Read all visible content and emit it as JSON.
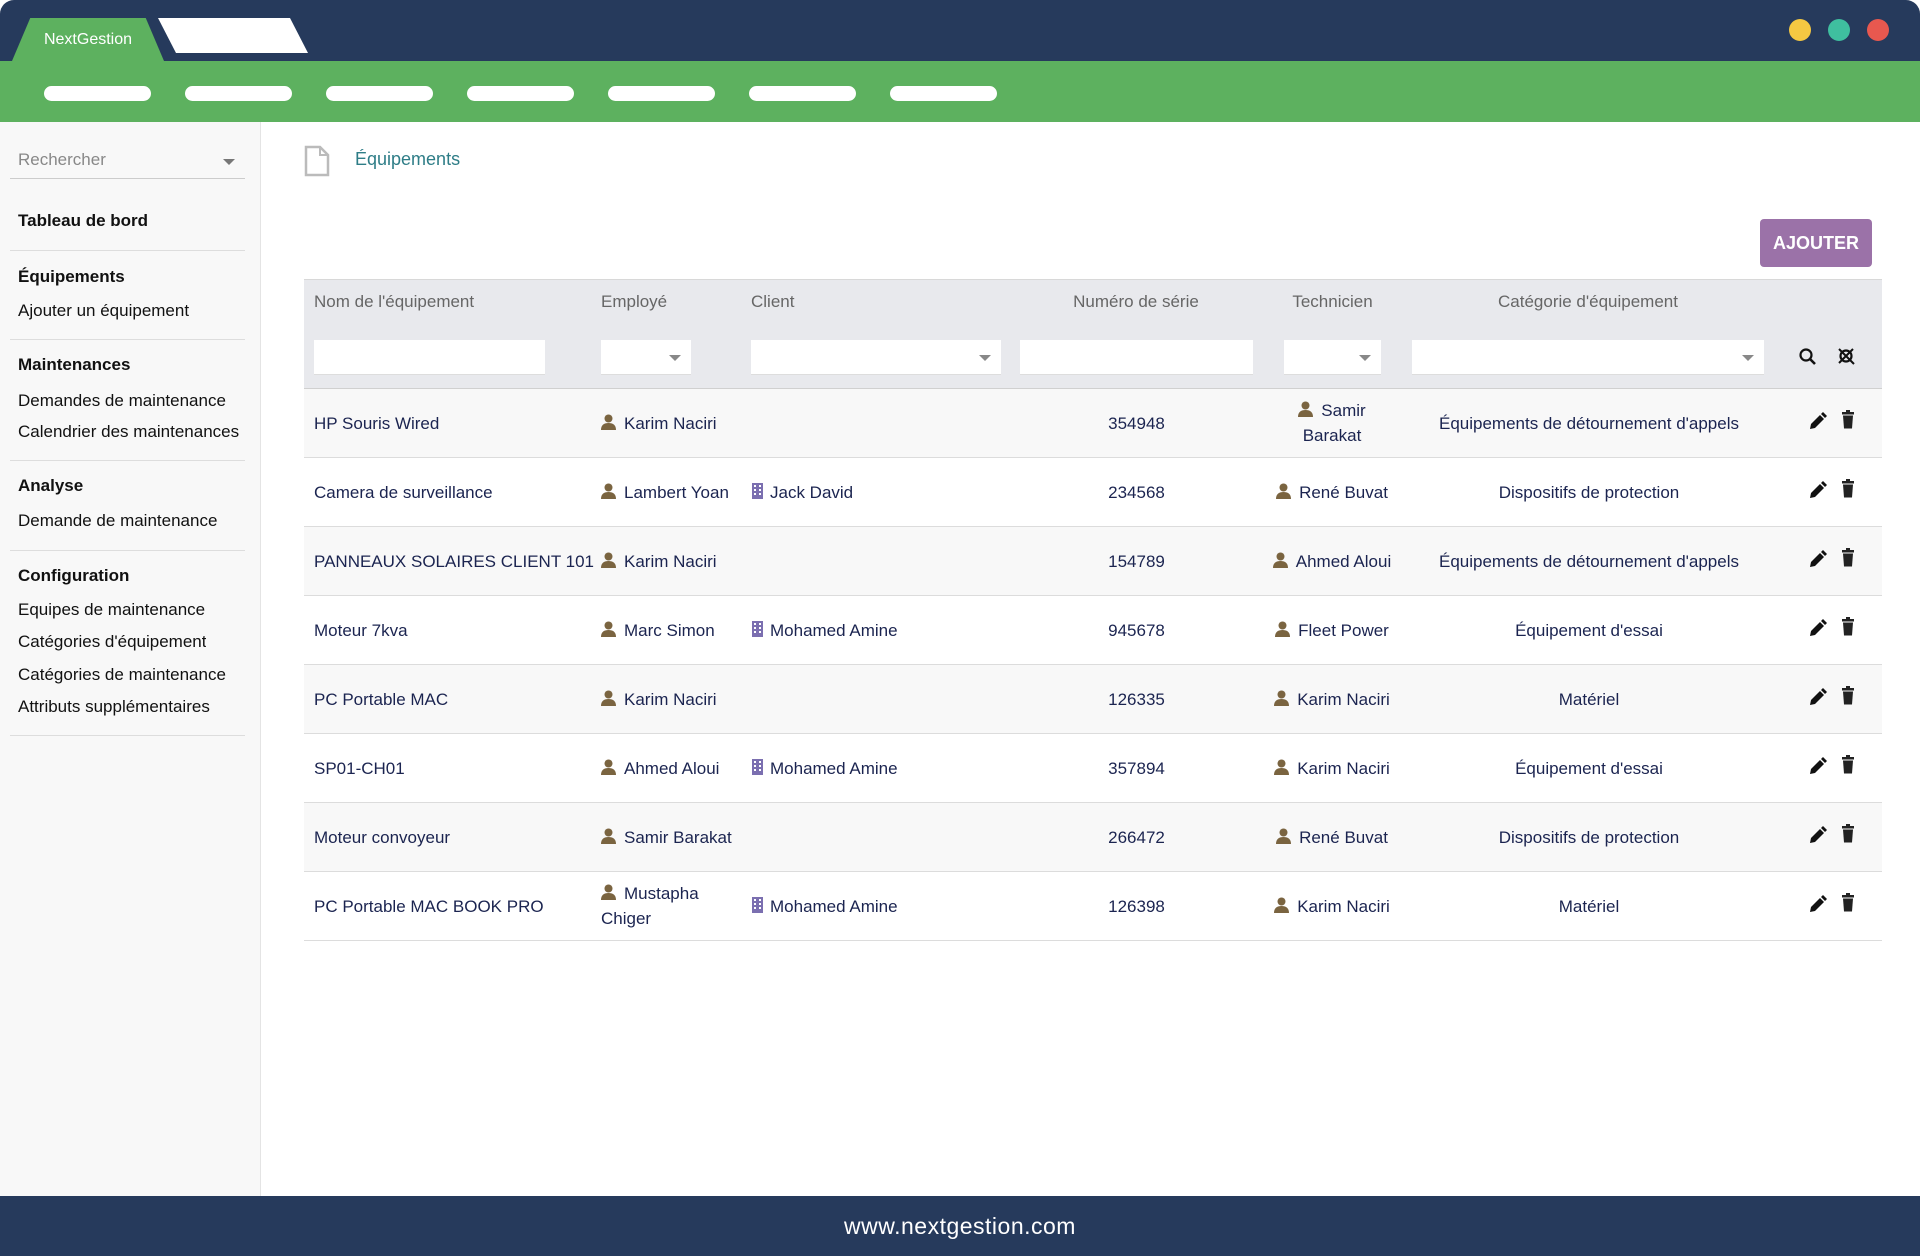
{
  "window": {
    "tab_active": "NextGestion",
    "tab_inactive": "",
    "dots": [
      "#f5c842",
      "#3fbf9f",
      "#e8584f"
    ],
    "nav_pill_count": 7
  },
  "colors": {
    "header": "#263a5c",
    "brand_green": "#5db15f",
    "accent_purple": "#9b72a8",
    "person_icon": "#7a6440",
    "building_icon": "#7b6fb0"
  },
  "sidebar": {
    "search_placeholder": "Rechercher",
    "sections": [
      {
        "title": "Tableau de bord",
        "items": []
      },
      {
        "title": "Équipements",
        "items": [
          "Ajouter un équipement"
        ]
      },
      {
        "title": "Maintenances",
        "items": [
          "Demandes de maintenance",
          "Calendrier des maintenances"
        ]
      },
      {
        "title": "Analyse",
        "items": [
          "Demande de maintenance"
        ]
      },
      {
        "title": "Configuration",
        "items": [
          "Equipes de maintenance",
          "Catégories d'équipement",
          "Catégories de maintenance",
          "Attributs supplémentaires"
        ]
      }
    ]
  },
  "breadcrumb": {
    "icon": "file-icon",
    "label": "Équipements"
  },
  "add_button": "AJOUTER",
  "table": {
    "columns": [
      "Nom de l'équipement",
      "Employé",
      "Client",
      "Numéro de série",
      "Technicien",
      "Catégorie d'équipement"
    ],
    "rows": [
      {
        "name": "HP Souris Wired",
        "employee": "Karim Naciri",
        "client": "",
        "serial": "354948",
        "technician": "Samir Barakat",
        "category": "Équipements de détournement d'appels"
      },
      {
        "name": "Camera de surveillance",
        "employee": "Lambert Yoan",
        "client": "Jack David",
        "serial": "234568",
        "technician": "René Buvat",
        "category": "Dispositifs de protection"
      },
      {
        "name": "PANNEAUX SOLAIRES CLIENT 101",
        "employee": "Karim Naciri",
        "client": "",
        "serial": "154789",
        "technician": "Ahmed Aloui",
        "category": "Équipements de détournement d'appels"
      },
      {
        "name": "Moteur 7kva",
        "employee": "Marc Simon",
        "client": "Mohamed Amine",
        "serial": "945678",
        "technician": "Fleet Power",
        "category": "Équipement d'essai"
      },
      {
        "name": "PC Portable MAC",
        "employee": "Karim Naciri",
        "client": "",
        "serial": "126335",
        "technician": "Karim Naciri",
        "category": "Matériel"
      },
      {
        "name": "SP01-CH01",
        "employee": "Ahmed Aloui",
        "client": "Mohamed Amine",
        "serial": "357894",
        "technician": "Karim Naciri",
        "category": "Équipement d'essai"
      },
      {
        "name": "Moteur convoyeur",
        "employee": "Samir Barakat",
        "client": "",
        "serial": "266472",
        "technician": "René Buvat",
        "category": "Dispositifs de protection"
      },
      {
        "name": "PC Portable MAC BOOK PRO",
        "employee": "Mustapha Chiger",
        "client": "Mohamed Amine",
        "serial": "126398",
        "technician": "Karim Naciri",
        "category": "Matériel"
      }
    ]
  },
  "footer": "www.nextgestion.com"
}
